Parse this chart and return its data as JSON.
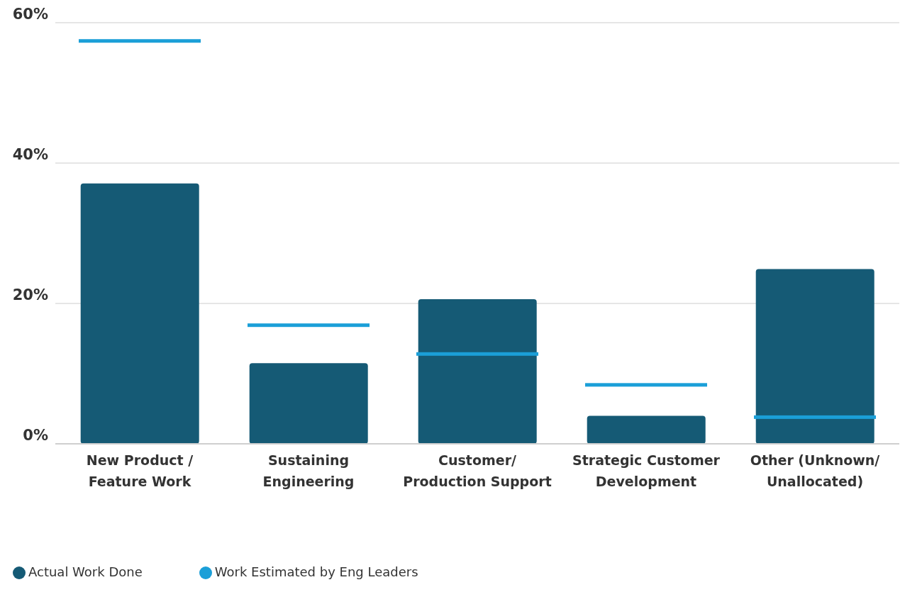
{
  "chart_data": {
    "type": "bar",
    "categories": [
      "New Product / Feature Work",
      "Sustaining Engineering",
      "Customer/ Production Support",
      "Strategic Customer Development",
      "Other (Unknown/ Unallocated)"
    ],
    "series": [
      {
        "name": "Actual Work Done",
        "color": "#155a75",
        "values": [
          37.1,
          11.5,
          20.6,
          4.0,
          24.9
        ]
      },
      {
        "name": "Work Estimated by Eng Leaders",
        "type": "scatter",
        "color": "#1b9fd8",
        "values": [
          57.4,
          16.9,
          12.8,
          8.4,
          3.8
        ]
      }
    ],
    "ylim": [
      0,
      60
    ],
    "yticks": [
      {
        "value": 0,
        "label": "0%"
      },
      {
        "value": 20,
        "label": "20%"
      },
      {
        "value": 40,
        "label": "40%"
      },
      {
        "value": 60,
        "label": "60%"
      }
    ],
    "grid": "y",
    "legend": "bottom left"
  }
}
